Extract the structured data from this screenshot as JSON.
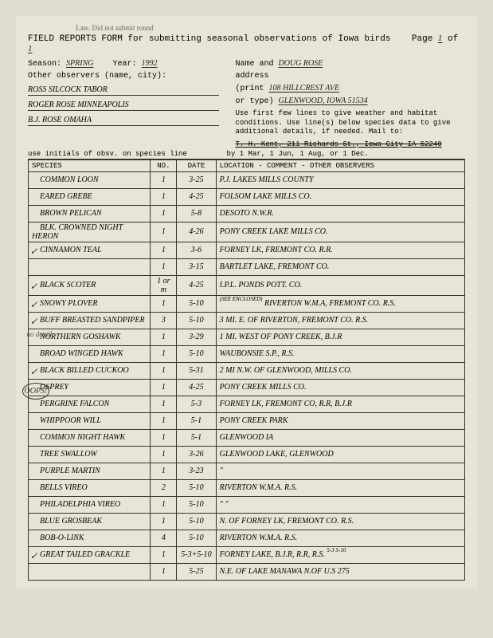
{
  "header_note": "Late. Did not submit round",
  "title": "FIELD REPORTS FORM for submitting seasonal observations of Iowa birds",
  "page_label": "Page",
  "page_val": "1",
  "page_of": "of",
  "page_total": "1",
  "season_label": "Season:",
  "season": "SPRING",
  "year_label": "Year:",
  "year": "1992",
  "name_label": "Name and",
  "name": "DOUG ROSE",
  "addr_label": "address",
  "addr_print": "(print",
  "addr_type": "or type)",
  "addr1": "108 HILLCREST AVE",
  "addr2": "GLENWOOD, IOWA 51534",
  "other_obs_label": "Other observers (name, city):",
  "obs1": "ROSS SILCOCK TABOR",
  "obs2": "ROGER ROSE MINNEAPOLIS",
  "obs3": "B.J. ROSE OMAHA",
  "instructions": "Use first few lines to give weather and habitat conditions. Use line(s) below species data to give additional details, if needed. Mail to:",
  "mailto": "T. H. Kent, 211 Richards St., Iowa City IA 52240",
  "sub1": "use initials of obsv. on species line",
  "sub2": "by 1 Mar, 1 Jun, 1 Aug, or 1 Dec.",
  "cols": {
    "species": "SPECIES",
    "no": "NO.",
    "date": "DATE",
    "loc": "LOCATION - COMMENT - OTHER OBSERVERS"
  },
  "margin": {
    "no_detail": "no detail",
    "oops": "OOPS!"
  },
  "rows": [
    {
      "sp": "COMMON LOON",
      "no": "1",
      "date": "3-25",
      "loc": "P.J. LAKES  MILLS COUNTY",
      "check": false
    },
    {
      "sp": "EARED GREBE",
      "no": "1",
      "date": "4-25",
      "loc": "FOLSOM LAKE  MILLS CO.",
      "check": false
    },
    {
      "sp": "BROWN PELICAN",
      "no": "1",
      "date": "5-8",
      "loc": "DESOTO N.W.R.",
      "check": false
    },
    {
      "sp": "BLK. CROWNED NIGHT HERON",
      "no": "1",
      "date": "4-26",
      "loc": "PONY CREEK LAKE  MILLS CO.",
      "check": false
    },
    {
      "sp": "CINNAMON TEAL",
      "no": "1",
      "date": "3-6",
      "loc": "FORNEY LK, FREMONT CO. R.R.",
      "check": true
    },
    {
      "sp": "",
      "no": "1",
      "date": "3-15",
      "loc": "BARTLET LAKE, FREMONT CO.",
      "check": false
    },
    {
      "sp": "BLACK SCOTER",
      "no": "1 or m",
      "date": "4-25",
      "loc": "I.P.L. PONDS POTT. CO.",
      "check": true
    },
    {
      "sp": "SNOWY PLOVER",
      "no": "1",
      "date": "5-10",
      "loc": "RIVERTON W.M.A, FREMONT CO. R.S.",
      "check": true,
      "note": "(SEE ENCLOSED)"
    },
    {
      "sp": "BUFF BREASTED SANDPIPER",
      "no": "3",
      "date": "5-10",
      "loc": "3 MI. E. OF RIVERTON, FREMONT CO. R.S.",
      "check": true
    },
    {
      "sp": "NORTHERN GOSHAWK",
      "no": "1",
      "date": "3-29",
      "loc": "1 MI. WEST OF PONY CREEK, B.J.R",
      "check": false,
      "margin": "no detail"
    },
    {
      "sp": "BROAD WINGED HAWK",
      "no": "1",
      "date": "5-10",
      "loc": "WAUBONSIE S.P., R.S.",
      "check": false
    },
    {
      "sp": "BLACK BILLED CUCKOO",
      "no": "1",
      "date": "5-31",
      "loc": "2 MI N.W. OF GLENWOOD, MILLS CO.",
      "check": true
    },
    {
      "sp": "OSPREY",
      "no": "1",
      "date": "4-25",
      "loc": "PONY CREEK MILLS CO.",
      "check": false,
      "margin": "oops"
    },
    {
      "sp": "PERGRINE FALCON",
      "no": "1",
      "date": "5-3",
      "loc": "FORNEY LK, FREMONT CO, R.R, B.J.R",
      "check": false
    },
    {
      "sp": "WHIPPOOR WILL",
      "no": "1",
      "date": "5-1",
      "loc": "PONY CREEK PARK",
      "check": false
    },
    {
      "sp": "COMMON NIGHT HAWK",
      "no": "1",
      "date": "5-1",
      "loc": "GLENWOOD IA",
      "check": false
    },
    {
      "sp": "TREE SWALLOW",
      "no": "1",
      "date": "3-26",
      "loc": "GLENWOOD LAKE, GLENWOOD",
      "check": false
    },
    {
      "sp": "PURPLE MARTIN",
      "no": "1",
      "date": "3-23",
      "loc": "\"",
      "check": false
    },
    {
      "sp": "BELLS VIREO",
      "no": "2",
      "date": "5-10",
      "loc": "RIVERTON W.M.A.  R.S.",
      "check": false
    },
    {
      "sp": "PHILADELPHIA VIREO",
      "no": "1",
      "date": "5-10",
      "loc": "\"           \"",
      "check": false
    },
    {
      "sp": "BLUE GROSBEAK",
      "no": "1",
      "date": "5-10",
      "loc": "N. OF FORNEY LK, FREMONT CO.  R.S.",
      "check": false
    },
    {
      "sp": "BOB-O-LINK",
      "no": "4",
      "date": "5-10",
      "loc": "RIVERTON W.M.A.  R.S.",
      "check": false
    },
    {
      "sp": "GREAT TAILED GRACKLE",
      "no": "1",
      "date": "5-3+5-10",
      "loc": "FORNEY LAKE, B.J.R, R.R, R.S.",
      "check": true,
      "note2": "5-3  5-10"
    },
    {
      "sp": "",
      "no": "1",
      "date": "5-25",
      "loc": "N.E. OF LAKE MANAWA N.OF U.S 275",
      "check": false
    }
  ]
}
